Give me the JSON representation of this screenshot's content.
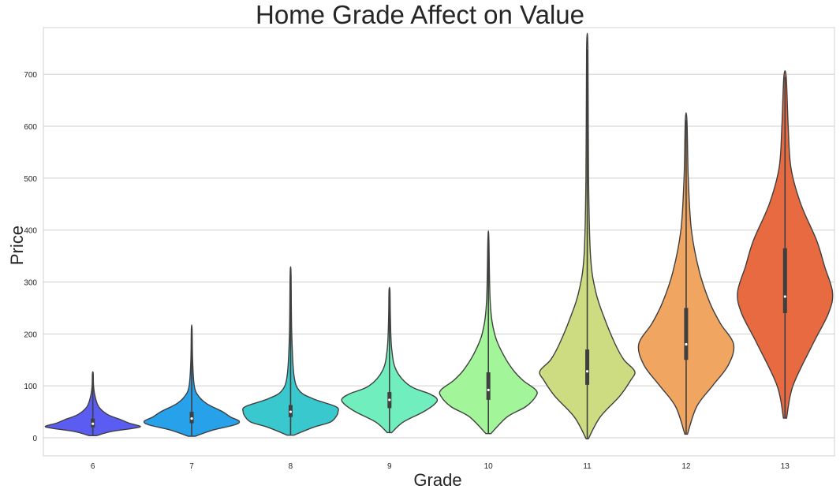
{
  "chart_data": {
    "type": "violin",
    "title": "Home Grade Affect on Value",
    "xlabel": "Grade",
    "ylabel": "Price",
    "categories": [
      "6",
      "7",
      "8",
      "9",
      "10",
      "11",
      "12",
      "13"
    ],
    "ylim": [
      -35,
      790
    ],
    "yticks": [
      0,
      100,
      200,
      300,
      400,
      500,
      600,
      700
    ],
    "grid": true,
    "violins": [
      {
        "category": "6",
        "color": "#5a5cf2",
        "min": 4,
        "max": 124,
        "q1": 20,
        "median": 27,
        "q3": 37,
        "profile": [
          [
            4,
            0.05
          ],
          [
            12,
            0.25
          ],
          [
            18,
            0.55
          ],
          [
            22,
            0.65
          ],
          [
            28,
            0.5
          ],
          [
            35,
            0.38
          ],
          [
            45,
            0.2
          ],
          [
            60,
            0.08
          ],
          [
            80,
            0.03
          ],
          [
            100,
            0.01
          ],
          [
            124,
            0.005
          ]
        ]
      },
      {
        "category": "7",
        "color": "#27a2ea",
        "min": 3,
        "max": 210,
        "q1": 28,
        "median": 37,
        "q3": 50,
        "profile": [
          [
            3,
            0.04
          ],
          [
            15,
            0.25
          ],
          [
            25,
            0.5
          ],
          [
            32,
            0.55
          ],
          [
            40,
            0.45
          ],
          [
            50,
            0.36
          ],
          [
            65,
            0.18
          ],
          [
            80,
            0.08
          ],
          [
            100,
            0.03
          ],
          [
            150,
            0.01
          ],
          [
            210,
            0.004
          ]
        ]
      },
      {
        "category": "8",
        "color": "#3ac8cf",
        "min": 5,
        "max": 315,
        "q1": 40,
        "median": 50,
        "q3": 63,
        "profile": [
          [
            5,
            0.03
          ],
          [
            20,
            0.2
          ],
          [
            30,
            0.35
          ],
          [
            40,
            0.4
          ],
          [
            50,
            0.42
          ],
          [
            60,
            0.4
          ],
          [
            75,
            0.2
          ],
          [
            90,
            0.08
          ],
          [
            120,
            0.03
          ],
          [
            200,
            0.01
          ],
          [
            315,
            0.004
          ]
        ]
      },
      {
        "category": "9",
        "color": "#70eebd",
        "min": 10,
        "max": 283,
        "q1": 57,
        "median": 73,
        "q3": 88,
        "profile": [
          [
            10,
            0.02
          ],
          [
            30,
            0.12
          ],
          [
            50,
            0.3
          ],
          [
            65,
            0.4
          ],
          [
            75,
            0.42
          ],
          [
            85,
            0.35
          ],
          [
            100,
            0.18
          ],
          [
            130,
            0.06
          ],
          [
            170,
            0.02
          ],
          [
            230,
            0.008
          ],
          [
            283,
            0.004
          ]
        ]
      },
      {
        "category": "10",
        "color": "#a3f59a",
        "min": 8,
        "max": 383,
        "q1": 73,
        "median": 92,
        "q3": 126,
        "profile": [
          [
            8,
            0.02
          ],
          [
            40,
            0.15
          ],
          [
            60,
            0.3
          ],
          [
            80,
            0.38
          ],
          [
            92,
            0.38
          ],
          [
            110,
            0.28
          ],
          [
            130,
            0.2
          ],
          [
            160,
            0.12
          ],
          [
            200,
            0.05
          ],
          [
            260,
            0.015
          ],
          [
            383,
            0.004
          ]
        ]
      },
      {
        "category": "11",
        "color": "#cddc80",
        "min": -2,
        "max": 748,
        "q1": 102,
        "median": 128,
        "q3": 170,
        "profile": [
          [
            -2,
            0.005
          ],
          [
            40,
            0.06
          ],
          [
            80,
            0.15
          ],
          [
            110,
            0.2
          ],
          [
            128,
            0.22
          ],
          [
            150,
            0.17
          ],
          [
            180,
            0.13
          ],
          [
            230,
            0.08
          ],
          [
            280,
            0.04
          ],
          [
            350,
            0.015
          ],
          [
            500,
            0.006
          ],
          [
            748,
            0.003
          ]
        ]
      },
      {
        "category": "12",
        "color": "#f0a560",
        "min": 7,
        "max": 612,
        "q1": 150,
        "median": 180,
        "q3": 250,
        "profile": [
          [
            7,
            0.005
          ],
          [
            60,
            0.04
          ],
          [
            100,
            0.1
          ],
          [
            140,
            0.16
          ],
          [
            180,
            0.18
          ],
          [
            220,
            0.13
          ],
          [
            260,
            0.09
          ],
          [
            320,
            0.05
          ],
          [
            400,
            0.02
          ],
          [
            500,
            0.008
          ],
          [
            612,
            0.003
          ]
        ]
      },
      {
        "category": "13",
        "color": "#e76a40",
        "min": 38,
        "max": 695,
        "q1": 240,
        "median": 272,
        "q3": 365,
        "profile": [
          [
            38,
            0.004
          ],
          [
            100,
            0.02
          ],
          [
            180,
            0.07
          ],
          [
            240,
            0.11
          ],
          [
            280,
            0.12
          ],
          [
            330,
            0.1
          ],
          [
            380,
            0.08
          ],
          [
            450,
            0.04
          ],
          [
            520,
            0.015
          ],
          [
            600,
            0.008
          ],
          [
            695,
            0.003
          ]
        ]
      }
    ]
  }
}
